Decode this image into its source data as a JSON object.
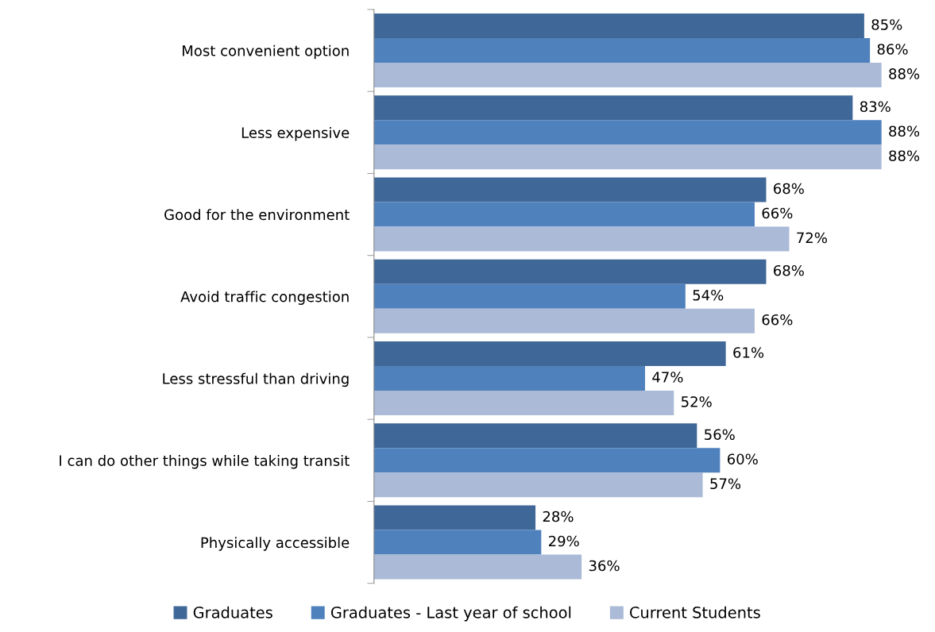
{
  "chart_data": {
    "type": "bar",
    "orientation": "horizontal",
    "legend": "bottom",
    "grid": false,
    "categories": [
      "Most convenient option",
      "Less expensive",
      "Good for the environment",
      "Avoid traffic congestion",
      "Less stressful than driving",
      "I can do other things while taking transit",
      "Physically accessible"
    ],
    "series": [
      {
        "name": "Graduates",
        "color": "#3f6797",
        "values": [
          85,
          83,
          68,
          68,
          61,
          56,
          28
        ],
        "value_labels": [
          "85%",
          "83%",
          "68%",
          "68%",
          "61%",
          "56%",
          "28%"
        ]
      },
      {
        "name": "Graduates - Last year of school",
        "color": "#4f81bd",
        "values": [
          86,
          88,
          66,
          54,
          47,
          60,
          29
        ],
        "value_labels": [
          "86%",
          "88%",
          "66%",
          "54%",
          "47%",
          "60%",
          "29%"
        ]
      },
      {
        "name": "Current Students",
        "color": "#aabad7",
        "values": [
          88,
          88,
          72,
          66,
          52,
          57,
          36
        ],
        "value_labels": [
          "88%",
          "88%",
          "72%",
          "66%",
          "52%",
          "57%",
          "36%"
        ]
      }
    ]
  }
}
